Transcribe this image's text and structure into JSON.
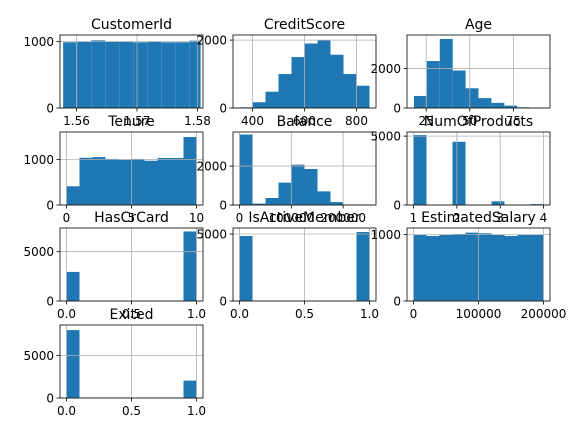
{
  "bar_color": "#1f77b4",
  "grid_color": "#b0b0b0",
  "chart_data": [
    {
      "type": "bar",
      "title": "CustomerId",
      "grid": true,
      "xlim": [
        15560000,
        15820000
      ],
      "ylim": [
        0,
        1100
      ],
      "bins": [
        [
          15565701,
          15591183
        ],
        [
          15591183,
          15616664
        ],
        [
          15616664,
          15642146
        ],
        [
          15642146,
          15667627
        ],
        [
          15667627,
          15693109
        ],
        [
          15693109,
          15718590
        ],
        [
          15718590,
          15744072
        ],
        [
          15744072,
          15769553
        ],
        [
          15769553,
          15795035
        ],
        [
          15795035,
          15815690
        ]
      ],
      "values": [
        990,
        1000,
        1020,
        995,
        995,
        990,
        995,
        990,
        990,
        1015
      ],
      "xticks": [
        {
          "v": 15590000,
          "label": "1.56"
        },
        {
          "v": 15700000,
          "label": "1.57"
        },
        {
          "v": 15810000,
          "label": "1.58"
        }
      ],
      "yticks": [
        {
          "v": 0,
          "label": "0"
        },
        {
          "v": 1000,
          "label": "1000"
        }
      ]
    },
    {
      "type": "bar",
      "title": "CreditScore",
      "grid": true,
      "xlim": [
        325,
        875
      ],
      "ylim": [
        0,
        2150
      ],
      "bins": [
        [
          350,
          400
        ],
        [
          400,
          450
        ],
        [
          450,
          500
        ],
        [
          500,
          550
        ],
        [
          550,
          600
        ],
        [
          600,
          650
        ],
        [
          650,
          700
        ],
        [
          700,
          750
        ],
        [
          750,
          800
        ],
        [
          800,
          850
        ]
      ],
      "values": [
        20,
        170,
        480,
        1000,
        1500,
        1900,
        2000,
        1570,
        1000,
        655
      ],
      "xticks": [
        {
          "v": 400,
          "label": "400"
        },
        {
          "v": 600,
          "label": "600"
        },
        {
          "v": 800,
          "label": "800"
        }
      ],
      "yticks": [
        {
          "v": 0,
          "label": "0"
        },
        {
          "v": 2000,
          "label": "2000"
        }
      ]
    },
    {
      "type": "bar",
      "title": "Age",
      "grid": true,
      "xlim": [
        14,
        96
      ],
      "ylim": [
        0,
        3700
      ],
      "bins": [
        [
          18,
          25.4
        ],
        [
          25.4,
          32.8
        ],
        [
          32.8,
          40.2
        ],
        [
          40.2,
          47.6
        ],
        [
          47.6,
          55
        ],
        [
          55,
          62.4
        ],
        [
          62.4,
          69.8
        ],
        [
          69.8,
          77.2
        ],
        [
          77.2,
          84.6
        ],
        [
          84.6,
          92
        ]
      ],
      "values": [
        610,
        2380,
        3500,
        1900,
        1000,
        500,
        260,
        120,
        35,
        10
      ],
      "xticks": [
        {
          "v": 25,
          "label": "25"
        },
        {
          "v": 50,
          "label": "50"
        },
        {
          "v": 75,
          "label": "75"
        }
      ],
      "yticks": [
        {
          "v": 0,
          "label": "0"
        },
        {
          "v": 2000,
          "label": "2000"
        }
      ]
    },
    {
      "type": "bar",
      "title": "Tenure",
      "grid": true,
      "xlim": [
        -0.5,
        10.5
      ],
      "ylim": [
        0,
        1600
      ],
      "bins": [
        [
          0,
          1
        ],
        [
          1,
          2
        ],
        [
          2,
          3
        ],
        [
          3,
          4
        ],
        [
          4,
          5
        ],
        [
          5,
          6
        ],
        [
          6,
          7
        ],
        [
          7,
          8
        ],
        [
          8,
          9
        ],
        [
          9,
          10
        ]
      ],
      "values": [
        410,
        1035,
        1050,
        1010,
        990,
        1010,
        970,
        1030,
        1030,
        1490
      ],
      "xticks": [
        {
          "v": 0,
          "label": "0"
        },
        {
          "v": 5,
          "label": "5"
        },
        {
          "v": 10,
          "label": "10"
        }
      ],
      "yticks": [
        {
          "v": 0,
          "label": "0"
        },
        {
          "v": 1000,
          "label": "1000"
        }
      ]
    },
    {
      "type": "bar",
      "title": "Balance",
      "grid": true,
      "xlim": [
        -12545,
        263455
      ],
      "ylim": [
        0,
        3750
      ],
      "bins": [
        [
          0,
          25090
        ],
        [
          25090,
          50180
        ],
        [
          50180,
          75270
        ],
        [
          75270,
          100360
        ],
        [
          100360,
          125450
        ],
        [
          125450,
          150540
        ],
        [
          150540,
          175630
        ],
        [
          175630,
          200720
        ],
        [
          200720,
          225810
        ],
        [
          225810,
          250900
        ]
      ],
      "values": [
        3620,
        70,
        360,
        1150,
        2070,
        1850,
        700,
        150,
        20,
        5
      ],
      "xticks": [
        {
          "v": 0,
          "label": "0"
        },
        {
          "v": 100000,
          "label": "100000"
        },
        {
          "v": 200000,
          "label": "200000"
        }
      ],
      "yticks": [
        {
          "v": 0,
          "label": "0"
        },
        {
          "v": 2000,
          "label": "2000"
        }
      ]
    },
    {
      "type": "bar",
      "title": "NumOfProducts",
      "grid": true,
      "xlim": [
        0.85,
        4.15
      ],
      "ylim": [
        0,
        5300
      ],
      "bins": [
        [
          1,
          1.3
        ],
        [
          1.3,
          1.6
        ],
        [
          1.6,
          1.9
        ],
        [
          1.9,
          2.2
        ],
        [
          2.2,
          2.5
        ],
        [
          2.5,
          2.8
        ],
        [
          2.8,
          3.1
        ],
        [
          3.1,
          3.4
        ],
        [
          3.4,
          3.7
        ],
        [
          3.7,
          4
        ]
      ],
      "values": [
        5080,
        0,
        0,
        4590,
        0,
        0,
        266,
        0,
        0,
        60
      ],
      "xticks": [
        {
          "v": 1,
          "label": "1"
        },
        {
          "v": 2,
          "label": "2"
        },
        {
          "v": 3,
          "label": "3"
        },
        {
          "v": 4,
          "label": "4"
        }
      ],
      "yticks": [
        {
          "v": 0,
          "label": "0"
        },
        {
          "v": 5000,
          "label": "5000"
        }
      ]
    },
    {
      "type": "bar",
      "title": "HasCrCard",
      "grid": true,
      "xlim": [
        -0.05,
        1.05
      ],
      "ylim": [
        0,
        7400
      ],
      "bins": [
        [
          0,
          0.1
        ],
        [
          0.1,
          0.2
        ],
        [
          0.2,
          0.3
        ],
        [
          0.3,
          0.4
        ],
        [
          0.4,
          0.5
        ],
        [
          0.5,
          0.6
        ],
        [
          0.6,
          0.7
        ],
        [
          0.7,
          0.8
        ],
        [
          0.8,
          0.9
        ],
        [
          0.9,
          1
        ]
      ],
      "values": [
        2950,
        0,
        0,
        0,
        0,
        0,
        0,
        0,
        0,
        7050
      ],
      "xticks": [
        {
          "v": 0,
          "label": "0.0"
        },
        {
          "v": 0.5,
          "label": "0.5"
        },
        {
          "v": 1,
          "label": "1.0"
        }
      ],
      "yticks": [
        {
          "v": 0,
          "label": "0"
        },
        {
          "v": 5000,
          "label": "5000"
        }
      ]
    },
    {
      "type": "bar",
      "title": "IsActiveMember",
      "grid": true,
      "xlim": [
        -0.05,
        1.05
      ],
      "ylim": [
        0,
        5450
      ],
      "bins": [
        [
          0,
          0.1
        ],
        [
          0.1,
          0.2
        ],
        [
          0.2,
          0.3
        ],
        [
          0.3,
          0.4
        ],
        [
          0.4,
          0.5
        ],
        [
          0.5,
          0.6
        ],
        [
          0.6,
          0.7
        ],
        [
          0.7,
          0.8
        ],
        [
          0.8,
          0.9
        ],
        [
          0.9,
          1
        ]
      ],
      "values": [
        4850,
        0,
        0,
        0,
        0,
        0,
        0,
        0,
        0,
        5150
      ],
      "xticks": [
        {
          "v": 0,
          "label": "0.0"
        },
        {
          "v": 0.5,
          "label": "0.5"
        },
        {
          "v": 1,
          "label": "1.0"
        }
      ],
      "yticks": [
        {
          "v": 0,
          "label": "0"
        },
        {
          "v": 5000,
          "label": "5000"
        }
      ]
    },
    {
      "type": "bar",
      "title": "EstimatedSalary",
      "grid": true,
      "xlim": [
        -9989,
        209989
      ],
      "ylim": [
        0,
        1100
      ],
      "bins": [
        [
          12,
          20011
        ],
        [
          20011,
          40010
        ],
        [
          40010,
          60009
        ],
        [
          60009,
          80008
        ],
        [
          80008,
          100007
        ],
        [
          100007,
          120006
        ],
        [
          120006,
          140005
        ],
        [
          140005,
          160004
        ],
        [
          160004,
          180003
        ],
        [
          180003,
          200002
        ]
      ],
      "values": [
        1000,
        980,
        1000,
        1010,
        1030,
        1020,
        995,
        980,
        995,
        1000
      ],
      "xticks": [
        {
          "v": 0,
          "label": "0"
        },
        {
          "v": 100000,
          "label": "100000"
        },
        {
          "v": 200000,
          "label": "200000"
        }
      ],
      "yticks": [
        {
          "v": 0,
          "label": "0"
        },
        {
          "v": 1000,
          "label": "1000"
        }
      ]
    },
    {
      "type": "bar",
      "title": "Exited",
      "grid": true,
      "xlim": [
        -0.05,
        1.05
      ],
      "ylim": [
        0,
        8560
      ],
      "bins": [
        [
          0,
          0.1
        ],
        [
          0.1,
          0.2
        ],
        [
          0.2,
          0.3
        ],
        [
          0.3,
          0.4
        ],
        [
          0.4,
          0.5
        ],
        [
          0.5,
          0.6
        ],
        [
          0.6,
          0.7
        ],
        [
          0.7,
          0.8
        ],
        [
          0.8,
          0.9
        ],
        [
          0.9,
          1
        ]
      ],
      "values": [
        7960,
        0,
        0,
        0,
        0,
        0,
        0,
        0,
        0,
        2040
      ],
      "xticks": [
        {
          "v": 0,
          "label": "0.0"
        },
        {
          "v": 0.5,
          "label": "0.5"
        },
        {
          "v": 1,
          "label": "1.0"
        }
      ],
      "yticks": [
        {
          "v": 0,
          "label": "0"
        },
        {
          "v": 5000,
          "label": "5000"
        }
      ]
    }
  ]
}
